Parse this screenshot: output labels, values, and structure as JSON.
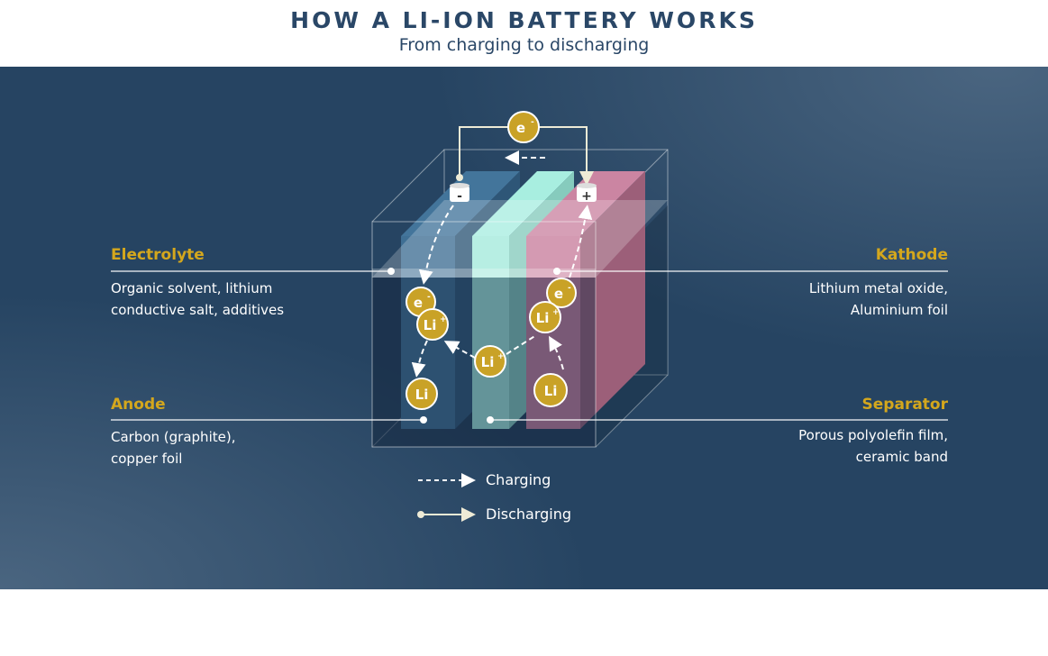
{
  "header": {
    "title": "HOW A LI-ION BATTERY WORKS",
    "subtitle": "From charging to discharging"
  },
  "labels": {
    "electrolyte": {
      "title": "Electrolyte",
      "desc": [
        "Organic solvent, lithium",
        "conductive salt, additives"
      ]
    },
    "kathode": {
      "title": "Kathode",
      "desc": [
        "Lithium metal oxide,",
        "Aluminium foil"
      ]
    },
    "anode": {
      "title": "Anode",
      "desc": [
        "Carbon (graphite),",
        "copper foil"
      ]
    },
    "separator": {
      "title": "Separator",
      "desc": [
        "Porous polyolefin film,",
        "ceramic band"
      ]
    }
  },
  "particles": {
    "electron": "e",
    "lithium_ion": "Li",
    "lithium": "Li",
    "plus_sup": "+",
    "minus_sup": "-"
  },
  "terminals": {
    "negative": "-",
    "positive": "+"
  },
  "legend": {
    "charging": "Charging",
    "discharging": "Discharging"
  },
  "colors": {
    "accent": "#d4a71d",
    "anode": "#3f6f94",
    "separator": "#a3eadc",
    "cathode": "#c87e9d",
    "background": "#264462",
    "title": "#2a4767"
  }
}
